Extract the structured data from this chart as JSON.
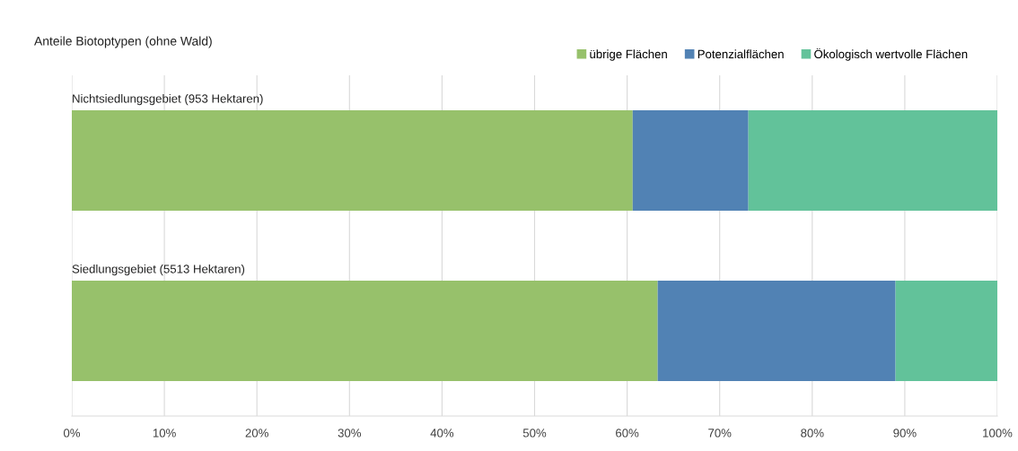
{
  "chart_data": {
    "type": "bar",
    "orientation": "horizontal",
    "stacked": true,
    "title": "Anteile Biotoptypen (ohne Wald)",
    "categories": [
      "Nichtsiedlungsgebiet (953 Hektaren)",
      "Siedlungsgebiet (5513 Hektaren)"
    ],
    "series": [
      {
        "name": "übrige Flächen",
        "color": "#97c16b",
        "values": [
          60.6,
          63.3
        ]
      },
      {
        "name": "Potenzialflächen",
        "color": "#5182b4",
        "values": [
          12.5,
          25.7
        ]
      },
      {
        "name": "Ökologisch wertvolle Flächen",
        "color": "#62c29a",
        "values": [
          26.9,
          11.0
        ]
      }
    ],
    "xlim": [
      0,
      100
    ],
    "xticks": [
      {
        "value": 0,
        "label": "0%"
      },
      {
        "value": 10,
        "label": "10%"
      },
      {
        "value": 20,
        "label": "20%"
      },
      {
        "value": 30,
        "label": "30%"
      },
      {
        "value": 40,
        "label": "40%"
      },
      {
        "value": 50,
        "label": "50%"
      },
      {
        "value": 60,
        "label": "60%"
      },
      {
        "value": 70,
        "label": "70%"
      },
      {
        "value": 80,
        "label": "80%"
      },
      {
        "value": 90,
        "label": "90%"
      },
      {
        "value": 100,
        "label": "100%"
      }
    ],
    "grid": "x",
    "legend": "top right"
  }
}
